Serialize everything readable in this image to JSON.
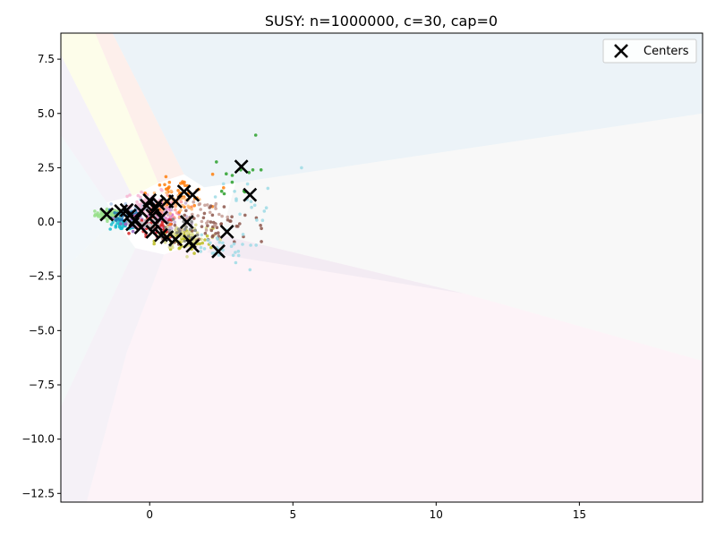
{
  "chart_data": {
    "type": "scatter",
    "title": "SUSY: n=1000000, c=30, cap=0",
    "xlabel": "",
    "ylabel": "",
    "xlim": [
      -3.1,
      19.3
    ],
    "ylim": [
      -12.9,
      8.7
    ],
    "x_ticks": [
      0,
      5,
      10,
      15
    ],
    "x_tick_labels": [
      "0",
      "5",
      "10",
      "15"
    ],
    "y_ticks": [
      7.5,
      5.0,
      2.5,
      0.0,
      -2.5,
      -5.0,
      -7.5,
      -10.0,
      -12.5
    ],
    "y_tick_labels": [
      "7.5",
      "5.0",
      "2.5",
      "0.0",
      "−2.5",
      "−5.0",
      "−7.5",
      "−10.0",
      "−12.5"
    ],
    "grid": false,
    "legend": {
      "position": "top-right",
      "entries": [
        {
          "label": "Centers",
          "marker": "x",
          "color": "#000000"
        }
      ]
    },
    "regions": [
      {
        "color": "#dde9f2",
        "polygon": [
          [
            1.9,
            1.6
          ],
          [
            1.2,
            2.2
          ],
          [
            -1.3,
            8.7
          ],
          [
            19.3,
            8.7
          ],
          [
            19.3,
            5.0
          ],
          [
            3.0,
            1.8
          ]
        ]
      },
      {
        "color": "#f3f3f3",
        "polygon": [
          [
            3.0,
            1.8
          ],
          [
            19.3,
            5.0
          ],
          [
            19.3,
            -6.4
          ],
          [
            11.0,
            -3.3
          ],
          [
            2.5,
            -0.6
          ]
        ]
      },
      {
        "color": "#fbe9f2",
        "polygon": [
          [
            2.5,
            -0.6
          ],
          [
            11.0,
            -3.3
          ],
          [
            19.3,
            -6.4
          ],
          [
            19.3,
            -12.9
          ],
          [
            -2.2,
            -12.9
          ],
          [
            -0.8,
            -6.0
          ],
          [
            0.5,
            -1.5
          ]
        ]
      },
      {
        "color": "#ece5f0",
        "polygon": [
          [
            0.5,
            -1.5
          ],
          [
            -0.8,
            -6.0
          ],
          [
            -2.2,
            -12.9
          ],
          [
            -3.1,
            -12.9
          ],
          [
            -3.1,
            -8.5
          ],
          [
            -0.5,
            -1.2
          ]
        ]
      },
      {
        "color": "#eaf0f3",
        "polygon": [
          [
            -0.5,
            -1.2
          ],
          [
            -3.1,
            -8.5
          ],
          [
            -3.1,
            -2.3
          ],
          [
            -1.2,
            0.1
          ]
        ]
      },
      {
        "color": "#e8f1f6",
        "polygon": [
          [
            -1.2,
            0.1
          ],
          [
            -3.1,
            -2.3
          ],
          [
            -3.1,
            4.0
          ],
          [
            -1.5,
            0.9
          ]
        ]
      },
      {
        "color": "#ece8f3",
        "polygon": [
          [
            -1.5,
            0.9
          ],
          [
            -3.1,
            4.0
          ],
          [
            -3.1,
            7.7
          ],
          [
            -0.6,
            1.2
          ]
        ]
      },
      {
        "color": "#fbfbd9",
        "polygon": [
          [
            -0.6,
            1.2
          ],
          [
            -3.1,
            7.7
          ],
          [
            -3.1,
            8.7
          ],
          [
            -1.9,
            8.7
          ],
          [
            0.3,
            1.8
          ]
        ]
      },
      {
        "color": "#fbe2da",
        "polygon": [
          [
            0.3,
            1.8
          ],
          [
            -1.9,
            8.7
          ],
          [
            -1.3,
            8.7
          ],
          [
            1.2,
            2.2
          ]
        ]
      },
      {
        "color": "#ebe4ef",
        "polygon": [
          [
            2.5,
            -0.6
          ],
          [
            11.0,
            -3.3
          ],
          [
            2.0,
            -1.4
          ]
        ]
      }
    ],
    "clusters": [
      {
        "color": "#98df8a",
        "center": [
          -1.4,
          0.35
        ],
        "spread": [
          0.25,
          0.12
        ],
        "count": 70
      },
      {
        "color": "#17becf",
        "center": [
          -0.9,
          -0.15
        ],
        "spread": [
          0.25,
          0.12
        ],
        "count": 45
      },
      {
        "color": "#1f77b4",
        "center": [
          -0.7,
          0.35
        ],
        "spread": [
          0.3,
          0.2
        ],
        "count": 50
      },
      {
        "color": "#aec7e8",
        "center": [
          -0.3,
          0.6
        ],
        "spread": [
          0.3,
          0.2
        ],
        "count": 40
      },
      {
        "color": "#9467bd",
        "center": [
          -0.4,
          0.1
        ],
        "spread": [
          0.3,
          0.25
        ],
        "count": 40
      },
      {
        "color": "#f7b6d2",
        "center": [
          0.0,
          0.8
        ],
        "spread": [
          0.45,
          0.3
        ],
        "count": 60
      },
      {
        "color": "#e377c2",
        "center": [
          0.3,
          0.3
        ],
        "spread": [
          0.4,
          0.3
        ],
        "count": 55
      },
      {
        "color": "#d62728",
        "center": [
          0.2,
          -0.3
        ],
        "spread": [
          0.35,
          0.25
        ],
        "count": 60
      },
      {
        "color": "#ff9896",
        "center": [
          0.5,
          0.5
        ],
        "spread": [
          0.4,
          0.3
        ],
        "count": 35
      },
      {
        "color": "#c5b0d5",
        "center": [
          0.7,
          0.2
        ],
        "spread": [
          0.5,
          0.35
        ],
        "count": 40
      },
      {
        "color": "#ff7f0e",
        "center": [
          1.0,
          1.3
        ],
        "spread": [
          0.5,
          0.35
        ],
        "count": 45
      },
      {
        "color": "#ffbb78",
        "center": [
          0.8,
          0.9
        ],
        "spread": [
          0.4,
          0.3
        ],
        "count": 30
      },
      {
        "color": "#bcbd22",
        "center": [
          1.2,
          -0.9
        ],
        "spread": [
          0.5,
          0.3
        ],
        "count": 50
      },
      {
        "color": "#dbdb8d",
        "center": [
          1.4,
          -0.6
        ],
        "spread": [
          0.5,
          0.35
        ],
        "count": 50
      },
      {
        "color": "#8c564b",
        "center": [
          2.2,
          -0.2
        ],
        "spread": [
          0.7,
          0.5
        ],
        "count": 50
      },
      {
        "color": "#c49c94",
        "center": [
          1.8,
          0.4
        ],
        "spread": [
          0.5,
          0.4
        ],
        "count": 25
      },
      {
        "color": "#9edae5",
        "center": [
          2.3,
          -1.2
        ],
        "spread": [
          0.6,
          0.35
        ],
        "count": 30
      },
      {
        "color": "#9edae5",
        "center": [
          3.2,
          1.0
        ],
        "spread": [
          0.5,
          0.5
        ],
        "count": 15
      },
      {
        "color": "#2ca02c",
        "center": [
          3.0,
          2.0
        ],
        "spread": [
          0.4,
          0.4
        ],
        "count": 10
      },
      {
        "color": "#7f7f7f",
        "center": [
          0.9,
          -0.4
        ],
        "spread": [
          0.4,
          0.3
        ],
        "count": 30
      },
      {
        "color": "#c7c7c7",
        "center": [
          -0.1,
          -0.1
        ],
        "spread": [
          0.3,
          0.2
        ],
        "count": 30
      }
    ],
    "extra_points": [
      {
        "x": 3.7,
        "y": 4.0,
        "color": "#2ca02c"
      },
      {
        "x": 5.3,
        "y": 2.5,
        "color": "#9edae5"
      },
      {
        "x": 3.5,
        "y": -2.2,
        "color": "#9edae5"
      },
      {
        "x": 4.0,
        "y": 0.5,
        "color": "#9edae5"
      },
      {
        "x": 3.9,
        "y": -0.3,
        "color": "#8c564b"
      },
      {
        "x": 3.9,
        "y": -0.9,
        "color": "#8c564b"
      },
      {
        "x": 3.6,
        "y": 2.4,
        "color": "#2ca02c"
      },
      {
        "x": 2.6,
        "y": 1.3,
        "color": "#2ca02c"
      },
      {
        "x": 2.2,
        "y": 2.2,
        "color": "#ff7f0e"
      }
    ],
    "centers": [
      [
        -1.5,
        0.35
      ],
      [
        -1.0,
        0.5
      ],
      [
        -0.8,
        0.55
      ],
      [
        -0.7,
        0.3
      ],
      [
        -0.5,
        0.1
      ],
      [
        -0.3,
        -0.25
      ],
      [
        -0.1,
        0.75
      ],
      [
        0.0,
        1.0
      ],
      [
        0.1,
        0.3
      ],
      [
        0.2,
        -0.1
      ],
      [
        0.3,
        0.85
      ],
      [
        0.1,
        -0.45
      ],
      [
        0.4,
        -0.6
      ],
      [
        0.6,
        -0.7
      ],
      [
        0.6,
        0.95
      ],
      [
        0.9,
        0.95
      ],
      [
        0.9,
        -0.8
      ],
      [
        1.2,
        1.4
      ],
      [
        1.3,
        0.0
      ],
      [
        1.4,
        -0.9
      ],
      [
        1.5,
        -1.1
      ],
      [
        1.5,
        1.25
      ],
      [
        2.4,
        -1.35
      ],
      [
        2.7,
        -0.45
      ],
      [
        3.2,
        2.55
      ],
      [
        3.5,
        1.25
      ],
      [
        -0.3,
        0.5
      ],
      [
        0.4,
        0.2
      ],
      [
        0.2,
        0.6
      ],
      [
        -0.6,
        -0.1
      ]
    ]
  }
}
